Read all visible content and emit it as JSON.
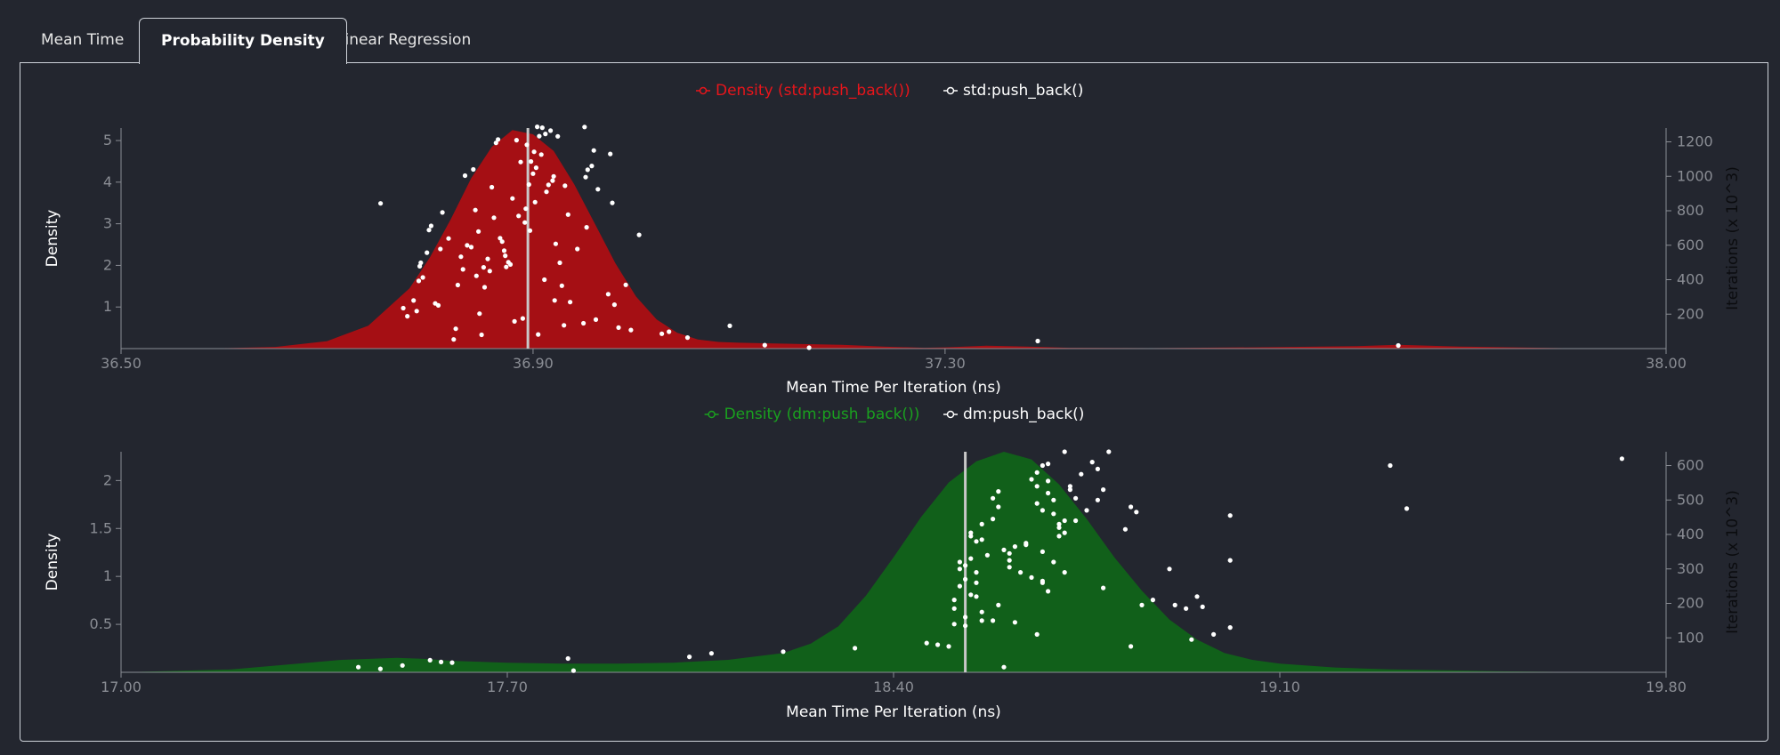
{
  "tabs": [
    {
      "label": "Mean Time",
      "active": false
    },
    {
      "label": "Probability Density",
      "active": true
    },
    {
      "label": "Linear Regression",
      "active": false
    }
  ],
  "colors": {
    "background": "#23262f",
    "axis": "#8a8d94",
    "text": "#ffffff",
    "point": "#ffffff",
    "mean_line": "#c8c8c8"
  },
  "chart_data": [
    {
      "type": "area",
      "legend": [
        {
          "label": "Density (std:push_back())",
          "color": "#e8151b"
        },
        {
          "label": "std:push_back()",
          "color": "#ffffff"
        }
      ],
      "xlabel": "Mean Time Per Iteration (ns)",
      "ylabel": "Density",
      "y2label": "Iterations (x 10^3)",
      "xlim": [
        36.5,
        38.0
      ],
      "ylim": [
        0,
        5.3
      ],
      "y2lim": [
        0,
        1280
      ],
      "x_ticks": [
        "36.50",
        "36.90",
        "37.30",
        "38.00"
      ],
      "x_tick_values": [
        36.5,
        36.9,
        37.3,
        38.0
      ],
      "y_ticks": [
        1,
        2,
        3,
        4,
        5
      ],
      "y2_ticks": [
        200,
        400,
        600,
        800,
        1000,
        1200
      ],
      "fill_color": "#a50f14",
      "mean": 36.895,
      "density": {
        "x": [
          36.5,
          36.6,
          36.65,
          36.7,
          36.74,
          36.78,
          36.8,
          36.82,
          36.84,
          36.86,
          36.88,
          36.9,
          36.92,
          36.94,
          36.96,
          36.98,
          37.0,
          37.02,
          37.04,
          37.06,
          37.08,
          37.1,
          37.14,
          37.2,
          37.24,
          37.28,
          37.3,
          37.34,
          37.38,
          37.42,
          37.5,
          37.6,
          37.7,
          37.74,
          37.8,
          37.9,
          38.0
        ],
        "y": [
          0.0,
          0.01,
          0.04,
          0.18,
          0.55,
          1.45,
          2.2,
          3.1,
          4.1,
          4.85,
          5.25,
          5.15,
          4.75,
          3.95,
          3.0,
          2.05,
          1.25,
          0.7,
          0.38,
          0.22,
          0.16,
          0.14,
          0.12,
          0.09,
          0.05,
          0.02,
          0.03,
          0.07,
          0.05,
          0.02,
          0.01,
          0.03,
          0.06,
          0.09,
          0.05,
          0.01,
          0.0
        ]
      },
      "points": [
        [
          36.752,
          843
        ],
        [
          36.774,
          235
        ],
        [
          36.778,
          188
        ],
        [
          36.784,
          279
        ],
        [
          36.787,
          218
        ],
        [
          36.789,
          393
        ],
        [
          36.79,
          478
        ],
        [
          36.791,
          498
        ],
        [
          36.793,
          413
        ],
        [
          36.797,
          557
        ],
        [
          36.799,
          688
        ],
        [
          36.801,
          712
        ],
        [
          36.805,
          262
        ],
        [
          36.808,
          251
        ],
        [
          36.81,
          578
        ],
        [
          36.812,
          790
        ],
        [
          36.818,
          639
        ],
        [
          36.823,
          53
        ],
        [
          36.825,
          115
        ],
        [
          36.827,
          369
        ],
        [
          36.83,
          533
        ],
        [
          36.832,
          460
        ],
        [
          36.834,
          1004
        ],
        [
          36.836,
          599
        ],
        [
          36.84,
          589
        ],
        [
          36.842,
          1040
        ],
        [
          36.844,
          804
        ],
        [
          36.845,
          422
        ],
        [
          36.847,
          680
        ],
        [
          36.848,
          203
        ],
        [
          36.85,
          80
        ],
        [
          36.852,
          472
        ],
        [
          36.853,
          356
        ],
        [
          36.856,
          521
        ],
        [
          36.858,
          450
        ],
        [
          36.86,
          937
        ],
        [
          36.862,
          760
        ],
        [
          36.864,
          1194
        ],
        [
          36.866,
          1214
        ],
        [
          36.868,
          641
        ],
        [
          36.87,
          621
        ],
        [
          36.872,
          568
        ],
        [
          36.873,
          539
        ],
        [
          36.874,
          474
        ],
        [
          36.876,
          501
        ],
        [
          36.878,
          488
        ],
        [
          36.88,
          871
        ],
        [
          36.882,
          158
        ],
        [
          36.884,
          1210
        ],
        [
          36.886,
          770
        ],
        [
          36.888,
          1083
        ],
        [
          36.89,
          175
        ],
        [
          36.892,
          732
        ],
        [
          36.893,
          812
        ],
        [
          36.894,
          1183
        ],
        [
          36.896,
          952
        ],
        [
          36.897,
          685
        ],
        [
          36.898,
          1086
        ],
        [
          36.9,
          1015
        ],
        [
          36.901,
          1142
        ],
        [
          36.902,
          850
        ],
        [
          36.903,
          1050
        ],
        [
          36.904,
          1287
        ],
        [
          36.905,
          82
        ],
        [
          36.906,
          1233
        ],
        [
          36.908,
          1126
        ],
        [
          36.909,
          1282
        ],
        [
          36.911,
          400
        ],
        [
          36.912,
          1246
        ],
        [
          36.913,
          910
        ],
        [
          36.915,
          950
        ],
        [
          36.917,
          1265
        ],
        [
          36.919,
          975
        ],
        [
          36.92,
          1000
        ],
        [
          36.921,
          280
        ],
        [
          36.922,
          608
        ],
        [
          36.924,
          1232
        ],
        [
          36.926,
          498
        ],
        [
          36.928,
          365
        ],
        [
          36.93,
          135
        ],
        [
          36.931,
          945
        ],
        [
          36.934,
          778
        ],
        [
          36.936,
          270
        ],
        [
          36.943,
          578
        ],
        [
          36.949,
          147
        ],
        [
          36.95,
          1286
        ],
        [
          36.951,
          995
        ],
        [
          36.952,
          704
        ],
        [
          36.953,
          1038
        ],
        [
          36.957,
          1060
        ],
        [
          36.959,
          1150
        ],
        [
          36.961,
          168
        ],
        [
          36.963,
          925
        ],
        [
          36.973,
          316
        ],
        [
          36.975,
          1130
        ],
        [
          36.977,
          846
        ],
        [
          36.979,
          255
        ],
        [
          36.983,
          122
        ],
        [
          36.99,
          370
        ],
        [
          36.995,
          108
        ],
        [
          37.003,
          660
        ],
        [
          37.025,
          86
        ],
        [
          37.032,
          98
        ],
        [
          37.05,
          64
        ],
        [
          37.091,
          132
        ],
        [
          37.125,
          20
        ],
        [
          37.168,
          5
        ],
        [
          37.39,
          44
        ],
        [
          37.74,
          18
        ]
      ]
    },
    {
      "type": "area",
      "legend": [
        {
          "label": "Density (dm:push_back())",
          "color": "#1aa01f"
        },
        {
          "label": "dm:push_back()",
          "color": "#ffffff"
        }
      ],
      "xlabel": "Mean Time Per Iteration (ns)",
      "ylabel": "Density",
      "y2label": "Iterations (x 10^3)",
      "xlim": [
        17.0,
        19.8
      ],
      "ylim": [
        0,
        2.3
      ],
      "y2lim": [
        0,
        640
      ],
      "x_ticks": [
        "17.00",
        "17.70",
        "18.40",
        "19.10",
        "19.80"
      ],
      "x_tick_values": [
        17.0,
        17.7,
        18.4,
        19.1,
        19.8
      ],
      "y_ticks": [
        "0.5",
        "1",
        "1.5",
        "2"
      ],
      "y_tick_values": [
        0.5,
        1,
        1.5,
        2
      ],
      "y2_ticks": [
        100,
        200,
        300,
        400,
        500,
        600
      ],
      "fill_color": "#11601a",
      "mean": 18.53,
      "density": {
        "x": [
          17.0,
          17.2,
          17.3,
          17.4,
          17.5,
          17.55,
          17.6,
          17.7,
          17.8,
          17.9,
          18.0,
          18.1,
          18.2,
          18.25,
          18.3,
          18.35,
          18.4,
          18.45,
          18.5,
          18.55,
          18.6,
          18.65,
          18.7,
          18.75,
          18.8,
          18.85,
          18.9,
          18.95,
          19.0,
          19.05,
          19.1,
          19.2,
          19.3,
          19.4,
          19.5,
          19.6,
          19.7,
          19.8
        ],
        "y": [
          0.0,
          0.03,
          0.08,
          0.13,
          0.15,
          0.14,
          0.12,
          0.1,
          0.09,
          0.09,
          0.1,
          0.13,
          0.2,
          0.3,
          0.48,
          0.8,
          1.2,
          1.62,
          1.98,
          2.2,
          2.3,
          2.22,
          1.96,
          1.6,
          1.2,
          0.85,
          0.55,
          0.34,
          0.2,
          0.13,
          0.09,
          0.05,
          0.03,
          0.02,
          0.01,
          0.005,
          0.0,
          0.0
        ]
      },
      "points": [
        [
          17.43,
          15
        ],
        [
          17.47,
          10
        ],
        [
          17.51,
          20
        ],
        [
          17.56,
          35
        ],
        [
          17.58,
          30
        ],
        [
          17.6,
          28
        ],
        [
          17.81,
          40
        ],
        [
          17.82,
          5
        ],
        [
          18.03,
          45
        ],
        [
          18.07,
          55
        ],
        [
          18.2,
          60
        ],
        [
          18.33,
          70
        ],
        [
          18.46,
          85
        ],
        [
          18.48,
          80
        ],
        [
          18.5,
          75
        ],
        [
          18.51,
          140
        ],
        [
          18.51,
          185
        ],
        [
          18.51,
          210
        ],
        [
          18.52,
          300
        ],
        [
          18.52,
          250
        ],
        [
          18.52,
          320
        ],
        [
          18.53,
          160
        ],
        [
          18.53,
          135
        ],
        [
          18.53,
          270
        ],
        [
          18.53,
          310
        ],
        [
          18.54,
          225
        ],
        [
          18.54,
          330
        ],
        [
          18.54,
          395
        ],
        [
          18.54,
          405
        ],
        [
          18.55,
          290
        ],
        [
          18.55,
          220
        ],
        [
          18.55,
          380
        ],
        [
          18.55,
          260
        ],
        [
          18.56,
          150
        ],
        [
          18.56,
          385
        ],
        [
          18.56,
          430
        ],
        [
          18.56,
          175
        ],
        [
          18.57,
          340
        ],
        [
          18.58,
          150
        ],
        [
          18.58,
          445
        ],
        [
          18.58,
          505
        ],
        [
          18.59,
          195
        ],
        [
          18.59,
          480
        ],
        [
          18.59,
          525
        ],
        [
          18.6,
          15
        ],
        [
          18.6,
          355
        ],
        [
          18.61,
          345
        ],
        [
          18.61,
          325
        ],
        [
          18.61,
          305
        ],
        [
          18.62,
          145
        ],
        [
          18.62,
          365
        ],
        [
          18.63,
          290
        ],
        [
          18.64,
          370
        ],
        [
          18.64,
          375
        ],
        [
          18.65,
          560
        ],
        [
          18.65,
          275
        ],
        [
          18.66,
          110
        ],
        [
          18.66,
          540
        ],
        [
          18.66,
          490
        ],
        [
          18.66,
          580
        ],
        [
          18.67,
          260
        ],
        [
          18.67,
          265
        ],
        [
          18.67,
          470
        ],
        [
          18.67,
          600
        ],
        [
          18.67,
          350
        ],
        [
          18.68,
          520
        ],
        [
          18.68,
          605
        ],
        [
          18.68,
          555
        ],
        [
          18.68,
          235
        ],
        [
          18.69,
          460
        ],
        [
          18.69,
          500
        ],
        [
          18.69,
          320
        ],
        [
          18.7,
          430
        ],
        [
          18.7,
          395
        ],
        [
          18.7,
          420
        ],
        [
          18.71,
          405
        ],
        [
          18.71,
          640
        ],
        [
          18.71,
          290
        ],
        [
          18.71,
          440
        ],
        [
          18.72,
          540
        ],
        [
          18.72,
          530
        ],
        [
          18.73,
          440
        ],
        [
          18.73,
          505
        ],
        [
          18.74,
          575
        ],
        [
          18.75,
          470
        ],
        [
          18.76,
          610
        ],
        [
          18.77,
          500
        ],
        [
          18.77,
          590
        ],
        [
          18.78,
          530
        ],
        [
          18.78,
          245
        ],
        [
          18.79,
          640
        ],
        [
          18.82,
          415
        ],
        [
          18.83,
          75
        ],
        [
          18.83,
          480
        ],
        [
          18.84,
          465
        ],
        [
          18.85,
          195
        ],
        [
          18.87,
          210
        ],
        [
          18.9,
          300
        ],
        [
          18.91,
          195
        ],
        [
          18.93,
          185
        ],
        [
          18.94,
          95
        ],
        [
          18.95,
          220
        ],
        [
          18.96,
          190
        ],
        [
          19.01,
          455
        ],
        [
          19.01,
          325
        ],
        [
          18.98,
          110
        ],
        [
          19.01,
          130
        ],
        [
          19.3,
          600
        ],
        [
          19.33,
          475
        ],
        [
          19.72,
          620
        ]
      ]
    }
  ]
}
